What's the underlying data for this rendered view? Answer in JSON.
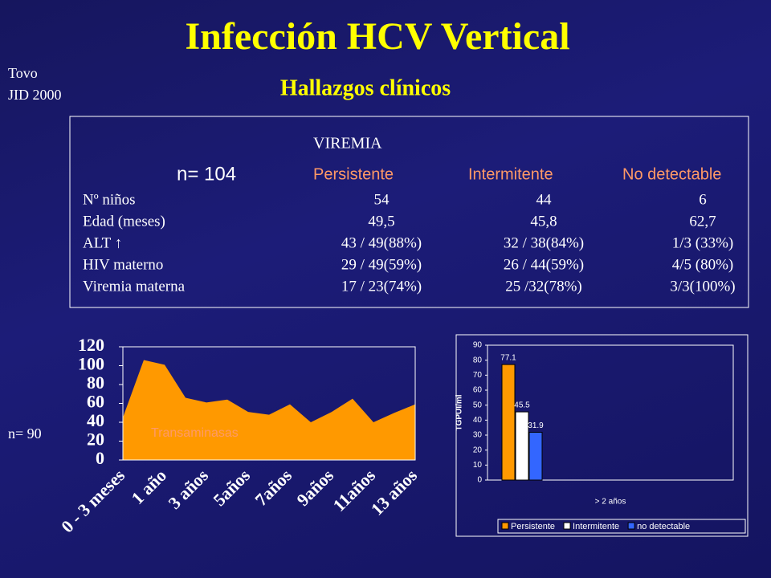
{
  "header": {
    "title": "Infección HCV Vertical",
    "subtitle": "Hallazgos clínicos",
    "source": [
      "Tovo",
      "JID 2000"
    ]
  },
  "table": {
    "group": "VIREMIA",
    "n": "n= 104",
    "columns": [
      "Persistente",
      "Intermitente",
      "No detectable"
    ],
    "rows": [
      [
        "Nº niños",
        "54",
        "44",
        "6"
      ],
      [
        "Edad (meses)",
        "49,5",
        "45,8",
        "62,7"
      ],
      [
        "ALT ↑",
        "43 / 49(88%)",
        "32 / 38(84%)",
        "1/3 (33%)"
      ],
      [
        "HIV materno",
        "29 / 49(59%)",
        "26 / 44(59%)",
        "4/5 (80%)"
      ],
      [
        "Viremia materna",
        "17 / 23(74%)",
        "25 /32(78%)",
        "3/3(100%)"
      ]
    ]
  },
  "chart_data": [
    {
      "type": "area",
      "n": "n= 90",
      "annotation": "Transaminasas",
      "color": "#ff9900",
      "categories": [
        "0 - 3 meses",
        null,
        "1 año",
        null,
        "3 años",
        null,
        "5años",
        null,
        "7años",
        null,
        "9años",
        null,
        "11años",
        null,
        "13 años"
      ],
      "values": [
        45,
        106,
        101,
        66,
        61,
        64,
        51,
        48,
        59,
        40,
        51,
        65,
        40,
        50,
        59
      ],
      "ylim": [
        0,
        120
      ],
      "yticks": [
        0,
        20,
        40,
        60,
        80,
        100,
        120
      ]
    },
    {
      "type": "bar",
      "ylabel": "TGPUI/ml",
      "categories": [
        "> 2 años"
      ],
      "series": [
        {
          "name": "Persistente",
          "color": "#ff9900",
          "values": [
            77.1
          ]
        },
        {
          "name": "Intermitente",
          "color": "#ffffff",
          "values": [
            45.5
          ]
        },
        {
          "name": "no detectable",
          "color": "#3366ff",
          "values": [
            31.9
          ]
        }
      ],
      "ylim": [
        0,
        90
      ],
      "yticks": [
        0,
        10,
        20,
        30,
        40,
        50,
        60,
        70,
        80,
        90
      ],
      "legend": "bottom"
    }
  ]
}
